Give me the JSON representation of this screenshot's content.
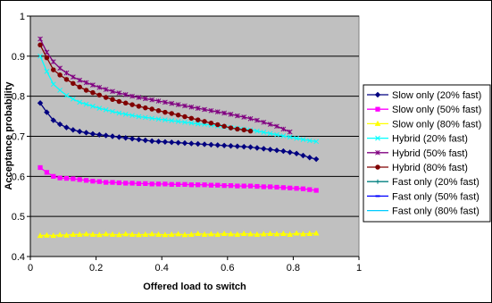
{
  "chart_data": {
    "type": "line",
    "title": "",
    "xlabel": "Offered load to switch",
    "ylabel": "Acceptance probability",
    "xlim": [
      0,
      1
    ],
    "ylim": [
      0.4,
      1
    ],
    "xticks": [
      "0",
      "0.2",
      "0.4",
      "0.6",
      "0.8",
      "1"
    ],
    "yticks": [
      "0.4",
      "0.5",
      "0.6",
      "0.7",
      "0.8",
      "0.9",
      "1"
    ],
    "grid": "horizontal major lines",
    "plot_background": "#c0c0c0",
    "legend_position": "right",
    "series": [
      {
        "name": "Slow only (20% fast)",
        "color": "#000080",
        "marker": "diamond",
        "x": [
          0.03,
          0.05,
          0.07,
          0.09,
          0.11,
          0.13,
          0.15,
          0.17,
          0.19,
          0.21,
          0.23,
          0.25,
          0.27,
          0.29,
          0.31,
          0.33,
          0.35,
          0.37,
          0.39,
          0.41,
          0.43,
          0.45,
          0.47,
          0.49,
          0.51,
          0.53,
          0.55,
          0.57,
          0.59,
          0.61,
          0.63,
          0.65,
          0.67,
          0.69,
          0.71,
          0.73,
          0.75,
          0.77,
          0.79,
          0.81,
          0.83,
          0.85,
          0.87
        ],
        "values": [
          0.783,
          0.76,
          0.74,
          0.73,
          0.722,
          0.716,
          0.712,
          0.709,
          0.706,
          0.704,
          0.702,
          0.7,
          0.698,
          0.696,
          0.694,
          0.692,
          0.69,
          0.688,
          0.687,
          0.686,
          0.685,
          0.684,
          0.683,
          0.682,
          0.681,
          0.68,
          0.679,
          0.678,
          0.677,
          0.676,
          0.675,
          0.674,
          0.673,
          0.671,
          0.669,
          0.667,
          0.665,
          0.663,
          0.66,
          0.657,
          0.652,
          0.647,
          0.643
        ]
      },
      {
        "name": "Slow only (50% fast)",
        "color": "#ff00ff",
        "marker": "square",
        "x": [
          0.03,
          0.05,
          0.07,
          0.09,
          0.11,
          0.13,
          0.15,
          0.17,
          0.19,
          0.21,
          0.23,
          0.25,
          0.27,
          0.29,
          0.31,
          0.33,
          0.35,
          0.37,
          0.39,
          0.41,
          0.43,
          0.45,
          0.47,
          0.49,
          0.51,
          0.53,
          0.55,
          0.57,
          0.59,
          0.61,
          0.63,
          0.65,
          0.67,
          0.69,
          0.71,
          0.73,
          0.75,
          0.77,
          0.79,
          0.81,
          0.83,
          0.85,
          0.87
        ],
        "values": [
          0.622,
          0.61,
          0.6,
          0.596,
          0.595,
          0.594,
          0.592,
          0.59,
          0.588,
          0.587,
          0.585,
          0.585,
          0.584,
          0.583,
          0.583,
          0.582,
          0.582,
          0.581,
          0.581,
          0.581,
          0.58,
          0.58,
          0.58,
          0.579,
          0.579,
          0.579,
          0.578,
          0.578,
          0.577,
          0.577,
          0.576,
          0.576,
          0.576,
          0.575,
          0.574,
          0.574,
          0.573,
          0.572,
          0.571,
          0.57,
          0.569,
          0.567,
          0.565
        ]
      },
      {
        "name": "Slow only (80% fast)",
        "color": "#ffff00",
        "marker": "triangle",
        "x": [
          0.03,
          0.05,
          0.07,
          0.09,
          0.11,
          0.13,
          0.15,
          0.17,
          0.19,
          0.21,
          0.23,
          0.25,
          0.27,
          0.29,
          0.31,
          0.33,
          0.35,
          0.37,
          0.39,
          0.41,
          0.43,
          0.45,
          0.47,
          0.49,
          0.51,
          0.53,
          0.55,
          0.57,
          0.59,
          0.61,
          0.63,
          0.65,
          0.67,
          0.69,
          0.71,
          0.73,
          0.75,
          0.77,
          0.79,
          0.81,
          0.83,
          0.85,
          0.87
        ],
        "values": [
          0.452,
          0.453,
          0.452,
          0.454,
          0.453,
          0.455,
          0.455,
          0.456,
          0.455,
          0.454,
          0.456,
          0.455,
          0.454,
          0.456,
          0.455,
          0.454,
          0.455,
          0.456,
          0.455,
          0.454,
          0.455,
          0.456,
          0.454,
          0.455,
          0.457,
          0.455,
          0.456,
          0.455,
          0.457,
          0.456,
          0.455,
          0.457,
          0.456,
          0.455,
          0.456,
          0.457,
          0.456,
          0.457,
          0.455,
          0.458,
          0.456,
          0.457,
          0.458
        ]
      },
      {
        "name": "Hybrid (20% fast)",
        "color": "#00ffff",
        "marker": "x",
        "x": [
          0.03,
          0.05,
          0.07,
          0.09,
          0.11,
          0.13,
          0.15,
          0.17,
          0.19,
          0.21,
          0.23,
          0.25,
          0.27,
          0.29,
          0.31,
          0.33,
          0.35,
          0.37,
          0.39,
          0.41,
          0.43,
          0.45,
          0.47,
          0.49,
          0.51,
          0.53,
          0.55,
          0.57,
          0.59,
          0.61,
          0.63,
          0.65,
          0.67,
          0.69,
          0.71,
          0.73,
          0.75,
          0.77,
          0.79,
          0.81,
          0.83,
          0.85,
          0.87
        ],
        "values": [
          0.9,
          0.862,
          0.83,
          0.815,
          0.802,
          0.793,
          0.785,
          0.78,
          0.775,
          0.77,
          0.766,
          0.762,
          0.758,
          0.755,
          0.752,
          0.749,
          0.747,
          0.745,
          0.743,
          0.741,
          0.739,
          0.737,
          0.735,
          0.733,
          0.731,
          0.73,
          0.728,
          0.726,
          0.724,
          0.722,
          0.72,
          0.718,
          0.716,
          0.713,
          0.71,
          0.707,
          0.704,
          0.701,
          0.698,
          0.695,
          0.692,
          0.689,
          0.687
        ]
      },
      {
        "name": "Hybrid (50% fast)",
        "color": "#800080",
        "marker": "asterisk",
        "x": [
          0.03,
          0.05,
          0.07,
          0.09,
          0.11,
          0.13,
          0.15,
          0.17,
          0.19,
          0.21,
          0.23,
          0.25,
          0.27,
          0.29,
          0.31,
          0.33,
          0.35,
          0.37,
          0.39,
          0.41,
          0.43,
          0.45,
          0.47,
          0.49,
          0.51,
          0.53,
          0.55,
          0.57,
          0.59,
          0.61,
          0.63,
          0.65,
          0.67,
          0.69,
          0.71,
          0.73,
          0.75,
          0.77,
          0.79
        ],
        "values": [
          0.943,
          0.91,
          0.886,
          0.87,
          0.858,
          0.848,
          0.84,
          0.834,
          0.828,
          0.822,
          0.817,
          0.812,
          0.808,
          0.804,
          0.8,
          0.797,
          0.794,
          0.791,
          0.788,
          0.785,
          0.782,
          0.779,
          0.776,
          0.773,
          0.77,
          0.767,
          0.764,
          0.761,
          0.758,
          0.755,
          0.751,
          0.748,
          0.744,
          0.74,
          0.735,
          0.73,
          0.725,
          0.718,
          0.711
        ]
      },
      {
        "name": "Hybrid (80% fast)",
        "color": "#800000",
        "marker": "circle",
        "x": [
          0.03,
          0.05,
          0.07,
          0.09,
          0.11,
          0.13,
          0.15,
          0.17,
          0.19,
          0.21,
          0.23,
          0.25,
          0.27,
          0.29,
          0.31,
          0.33,
          0.35,
          0.37,
          0.39,
          0.41,
          0.43,
          0.45,
          0.47,
          0.49,
          0.51,
          0.53,
          0.55,
          0.57,
          0.59,
          0.61,
          0.63,
          0.65,
          0.67
        ],
        "values": [
          0.928,
          0.896,
          0.866,
          0.853,
          0.842,
          0.832,
          0.823,
          0.815,
          0.809,
          0.803,
          0.797,
          0.792,
          0.787,
          0.783,
          0.779,
          0.775,
          0.771,
          0.768,
          0.764,
          0.76,
          0.757,
          0.753,
          0.749,
          0.745,
          0.741,
          0.737,
          0.733,
          0.729,
          0.725,
          0.721,
          0.718,
          0.716,
          0.713
        ]
      },
      {
        "name": "Fast only (20% fast)",
        "color": "#008080",
        "marker": "plus",
        "x": [],
        "values": []
      },
      {
        "name": "Fast only (50% fast)",
        "color": "#0000ff",
        "marker": "dash",
        "x": [],
        "values": []
      },
      {
        "name": "Fast only (80% fast)",
        "color": "#00ccff",
        "marker": "none",
        "x": [],
        "values": []
      }
    ]
  }
}
